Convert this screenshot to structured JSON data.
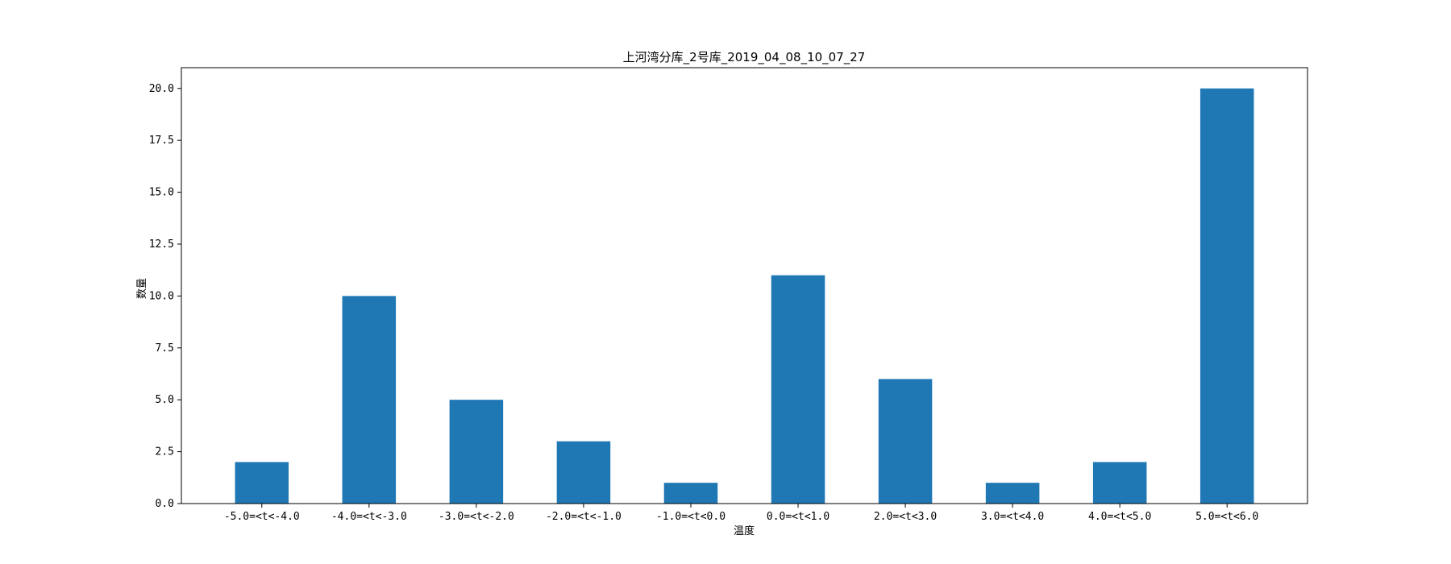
{
  "chart_data": {
    "type": "bar",
    "title": "上河湾分库_2号库_2019_04_08_10_07_27",
    "xlabel": "温度",
    "ylabel": "数量",
    "categories": [
      "-5.0=<t<-4.0",
      "-4.0=<t<-3.0",
      "-3.0=<t<-2.0",
      "-2.0=<t<-1.0",
      "-1.0=<t<0.0",
      "0.0=<t<1.0",
      "2.0=<t<3.0",
      "3.0=<t<4.0",
      "4.0=<t<5.0",
      "5.0=<t<6.0"
    ],
    "values": [
      2,
      10,
      5,
      3,
      1,
      11,
      6,
      1,
      2,
      20
    ],
    "ylim": [
      0,
      21
    ],
    "yticks": [
      "0.0",
      "2.5",
      "5.0",
      "7.5",
      "10.0",
      "12.5",
      "15.0",
      "17.5",
      "20.0"
    ],
    "bar_color": "#1f77b4",
    "grid": false,
    "legend": "none"
  }
}
